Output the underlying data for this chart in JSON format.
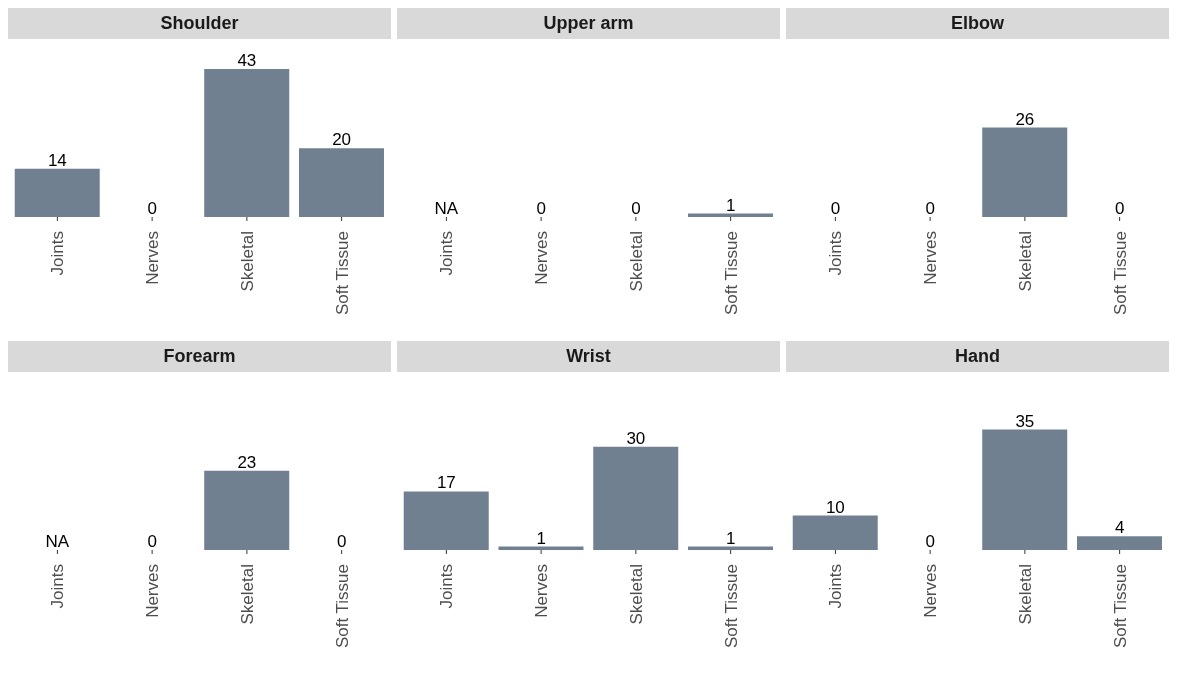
{
  "chart_data": [
    {
      "type": "bar",
      "title": "Shoulder",
      "categories": [
        "Joints",
        "Nerves",
        "Skeletal",
        "Soft Tissue"
      ],
      "values": [
        14,
        0,
        43,
        20
      ],
      "value_labels": [
        "14",
        "0",
        "43",
        "20"
      ],
      "color": "#708090",
      "tick_labels": "x"
    },
    {
      "type": "bar",
      "title": "Upper arm",
      "categories": [
        "Joints",
        "Nerves",
        "Skeletal",
        "Soft Tissue"
      ],
      "values": [
        null,
        0,
        0,
        1
      ],
      "value_labels": [
        "NA",
        "0",
        "0",
        "1"
      ],
      "color": "#708090",
      "tick_labels": "x"
    },
    {
      "type": "bar",
      "title": "Elbow",
      "categories": [
        "Joints",
        "Nerves",
        "Skeletal",
        "Soft Tissue"
      ],
      "values": [
        0,
        0,
        26,
        0
      ],
      "value_labels": [
        "0",
        "0",
        "26",
        "0"
      ],
      "color": "#708090",
      "tick_labels": "x"
    },
    {
      "type": "bar",
      "title": "Forearm",
      "categories": [
        "Joints",
        "Nerves",
        "Skeletal",
        "Soft Tissue"
      ],
      "values": [
        null,
        0,
        23,
        0
      ],
      "value_labels": [
        "NA",
        "0",
        "23",
        "0"
      ],
      "color": "#708090",
      "tick_labels": "x"
    },
    {
      "type": "bar",
      "title": "Wrist",
      "categories": [
        "Joints",
        "Nerves",
        "Skeletal",
        "Soft Tissue"
      ],
      "values": [
        17,
        1,
        30,
        1
      ],
      "value_labels": [
        "17",
        "1",
        "30",
        "1"
      ],
      "color": "#708090",
      "tick_labels": "x"
    },
    {
      "type": "bar",
      "title": "Hand",
      "categories": [
        "Joints",
        "Nerves",
        "Skeletal",
        "Soft Tissue"
      ],
      "values": [
        10,
        0,
        35,
        4
      ],
      "value_labels": [
        "10",
        "0",
        "35",
        "4"
      ],
      "color": "#708090",
      "tick_labels": "x"
    }
  ]
}
